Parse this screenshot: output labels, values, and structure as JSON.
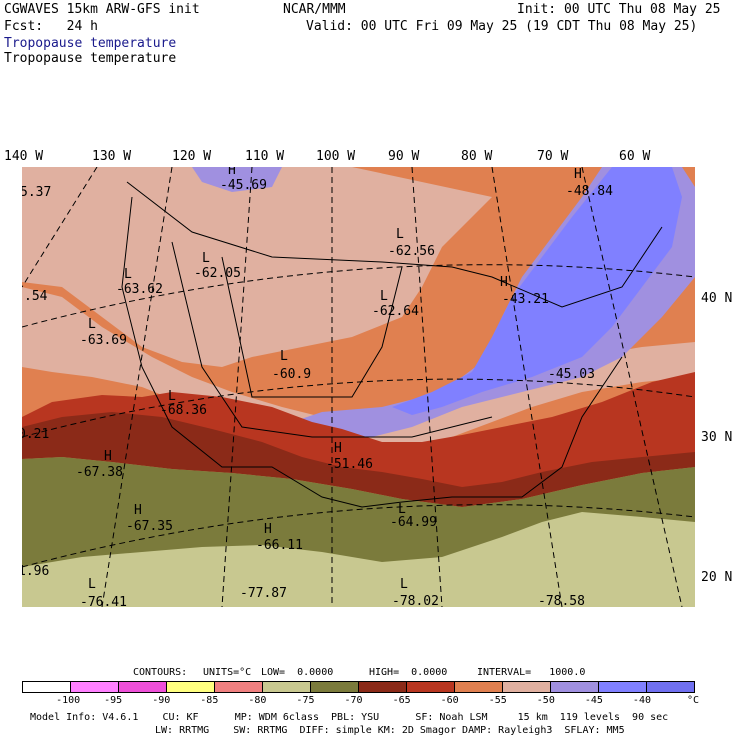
{
  "header": {
    "model_title": "CGWAVES 15km ARW-GFS init",
    "center": "NCAR/MMM",
    "init": "Init: 00 UTC Thu 08 May 25",
    "fcst": "Fcst:   24 h",
    "valid": "Valid: 00 UTC Fri 09 May 25 (19 CDT Thu 08 May 25)",
    "field_colored": "Tropopause temperature",
    "field_contour": "Tropopause temperature"
  },
  "longitude_labels": [
    "140 W",
    "130 W",
    "120 W",
    "110 W",
    "100 W",
    "90 W",
    "80 W",
    "70 W",
    "60 W"
  ],
  "latitude_labels": [
    "40 N",
    "30 N",
    "20 N"
  ],
  "map_labels": [
    {
      "text": "H",
      "kind": "marker"
    },
    {
      "text": "-45.69",
      "kind": "value"
    },
    {
      "text": "H",
      "kind": "marker"
    },
    {
      "text": "-48.84",
      "kind": "value"
    },
    {
      "text": "5.37",
      "kind": "value"
    },
    {
      "text": "L",
      "kind": "marker"
    },
    {
      "text": "-62.56",
      "kind": "value"
    },
    {
      "text": "L",
      "kind": "marker"
    },
    {
      "text": "-62.05",
      "kind": "value"
    },
    {
      "text": "L",
      "kind": "marker"
    },
    {
      "text": "-63.62",
      "kind": "value"
    },
    {
      "text": ".54",
      "kind": "value"
    },
    {
      "text": "H",
      "kind": "marker"
    },
    {
      "text": "-43.21",
      "kind": "value"
    },
    {
      "text": "L",
      "kind": "marker"
    },
    {
      "text": "-62.64",
      "kind": "value"
    },
    {
      "text": "L",
      "kind": "marker"
    },
    {
      "text": "-63.69",
      "kind": "value"
    },
    {
      "text": "L",
      "kind": "marker"
    },
    {
      "text": "-60.9",
      "kind": "value"
    },
    {
      "text": "-45.03",
      "kind": "value"
    },
    {
      "text": "L",
      "kind": "marker"
    },
    {
      "text": "-68.36",
      "kind": "value"
    },
    {
      "text": "0.21",
      "kind": "value"
    },
    {
      "text": "H",
      "kind": "marker"
    },
    {
      "text": "-51.46",
      "kind": "value"
    },
    {
      "text": "H",
      "kind": "marker"
    },
    {
      "text": "-67.38",
      "kind": "value"
    },
    {
      "text": "H",
      "kind": "marker"
    },
    {
      "text": "-67.35",
      "kind": "value"
    },
    {
      "text": "L",
      "kind": "marker"
    },
    {
      "text": "-64.99",
      "kind": "value"
    },
    {
      "text": "H",
      "kind": "marker"
    },
    {
      "text": "-66.11",
      "kind": "value"
    },
    {
      "text": "1.96",
      "kind": "value"
    },
    {
      "text": "L",
      "kind": "marker"
    },
    {
      "text": "-76.41",
      "kind": "value"
    },
    {
      "text": "-77.87",
      "kind": "value"
    },
    {
      "text": "L",
      "kind": "marker"
    },
    {
      "text": "-78.02",
      "kind": "value"
    },
    {
      "text": "-78.58",
      "kind": "value"
    }
  ],
  "contour_info": {
    "contours": "CONTOURS:",
    "units": "UNITS=°C",
    "low": "LOW=  0.0000",
    "high": "HIGH=  0.0000",
    "interval": "INTERVAL=   1000.0"
  },
  "legend": {
    "colors": [
      "#ffffff",
      "#ff80ff",
      "#ee50d8",
      "#ffff80",
      "#f08080",
      "#c8c890",
      "#7b7b3c",
      "#8b2a18",
      "#b83620",
      "#e08050",
      "#e0b0a0",
      "#a090e0",
      "#8080ff",
      "#7070f0"
    ],
    "labels": [
      "-100",
      "-95",
      "-90",
      "-85",
      "-80",
      "-75",
      "-70",
      "-65",
      "-60",
      "-55",
      "-50",
      "-45",
      "-40"
    ],
    "unit": "°C"
  },
  "footer": {
    "line1": "Model Info: V4.6.1    CU: KF      MP: WDM 6class  PBL: YSU      SF: Noah LSM     15 km  119 levels  90 sec",
    "line2": "LW: RRTMG    SW: RRTMG  DIFF: simple KM: 2D Smagor DAMP: Rayleigh3  SFLAY: MM5"
  }
}
